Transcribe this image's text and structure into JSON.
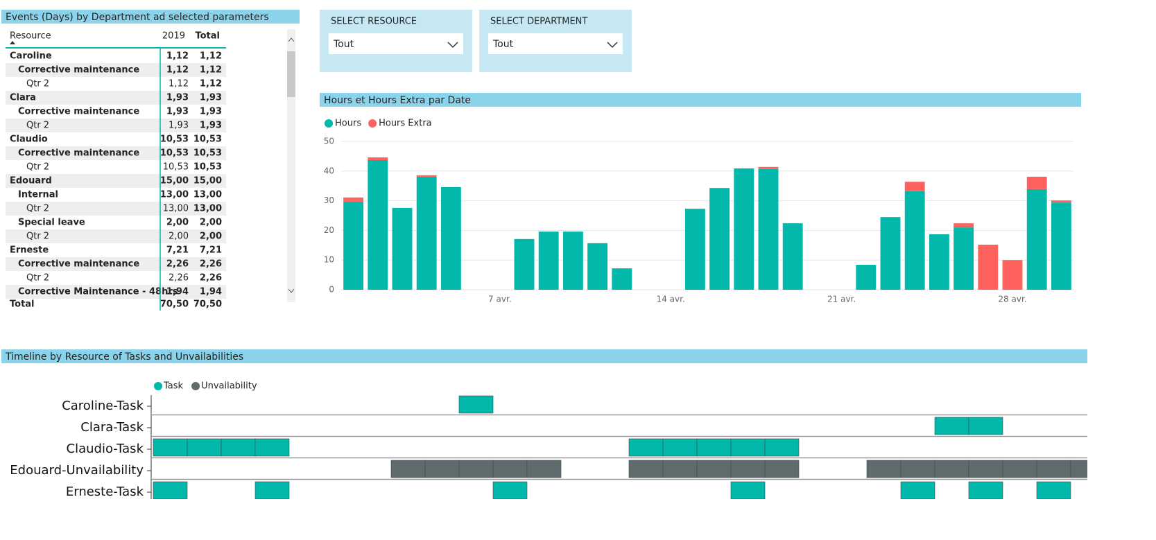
{
  "table_panel": {
    "title": "Events (Days) by Department ad selected parameters",
    "columns": [
      "Resource",
      "2019",
      "Total"
    ],
    "rows": [
      {
        "label": "Caroline",
        "cells": [
          "1,12",
          "1,12"
        ],
        "children": [
          {
            "label": "Corrective maintenance",
            "cells": [
              "1,12",
              "1,12"
            ],
            "children": [
              {
                "label": "Qtr 2",
                "cells": [
                  "1,12",
                  "1,12"
                ]
              }
            ]
          }
        ]
      },
      {
        "label": "Clara",
        "cells": [
          "1,93",
          "1,93"
        ],
        "children": [
          {
            "label": "Corrective maintenance",
            "cells": [
              "1,93",
              "1,93"
            ],
            "children": [
              {
                "label": "Qtr 2",
                "cells": [
                  "1,93",
                  "1,93"
                ]
              }
            ]
          }
        ]
      },
      {
        "label": "Claudio",
        "cells": [
          "10,53",
          "10,53"
        ],
        "children": [
          {
            "label": "Corrective maintenance",
            "cells": [
              "10,53",
              "10,53"
            ],
            "children": [
              {
                "label": "Qtr 2",
                "cells": [
                  "10,53",
                  "10,53"
                ]
              }
            ]
          }
        ]
      },
      {
        "label": "Edouard",
        "cells": [
          "15,00",
          "15,00"
        ],
        "children": [
          {
            "label": "Internal",
            "cells": [
              "13,00",
              "13,00"
            ],
            "children": [
              {
                "label": "Qtr 2",
                "cells": [
                  "13,00",
                  "13,00"
                ]
              }
            ]
          },
          {
            "label": "Special leave",
            "cells": [
              "2,00",
              "2,00"
            ],
            "children": [
              {
                "label": "Qtr 2",
                "cells": [
                  "2,00",
                  "2,00"
                ]
              }
            ]
          }
        ]
      },
      {
        "label": "Erneste",
        "cells": [
          "7,21",
          "7,21"
        ],
        "children": [
          {
            "label": "Corrective maintenance",
            "cells": [
              "2,26",
              "2,26"
            ],
            "children": [
              {
                "label": "Qtr 2",
                "cells": [
                  "2,26",
                  "2,26"
                ]
              }
            ]
          },
          {
            "label": "Corrective Maintenance - 48hrs",
            "cells": [
              "1,94",
              "1,94"
            ]
          }
        ]
      }
    ],
    "total": {
      "label": "Total",
      "cells": [
        "70,50",
        "70,50"
      ]
    }
  },
  "slicers": [
    {
      "label": "SELECT RESOURCE",
      "value": "Tout"
    },
    {
      "label": "SELECT DEPARTMENT",
      "value": "Tout"
    }
  ],
  "chart_data": {
    "type": "bar",
    "stacked": true,
    "title": "Hours et Hours Extra par Date",
    "x": [
      1,
      2,
      3,
      4,
      5,
      8,
      9,
      10,
      11,
      12,
      15,
      16,
      17,
      18,
      19,
      22,
      23,
      24,
      25,
      26,
      27,
      28,
      29,
      30
    ],
    "series": [
      {
        "name": "Hours",
        "color": "#01b8aa",
        "values": [
          29.7,
          43.7,
          27.6,
          38.1,
          34.6,
          17.1,
          19.6,
          19.6,
          15.7,
          7.2,
          27.3,
          34.3,
          40.9,
          40.7,
          22.4,
          8.4,
          24.5,
          33.2,
          18.7,
          21.0,
          0,
          0,
          33.9,
          29.4
        ]
      },
      {
        "name": "Hours Extra",
        "color": "#fd625e",
        "values": [
          1.4,
          0.9,
          0,
          0.5,
          0,
          0,
          0,
          0,
          0,
          0,
          0,
          0,
          0,
          0.7,
          0,
          0,
          0,
          3.2,
          0,
          1.4,
          15.2,
          10.0,
          4.2,
          0.7
        ]
      }
    ],
    "xlim": [
      0.5,
      30.5
    ],
    "xticks": [
      {
        "value": 7,
        "label": "7 avr."
      },
      {
        "value": 14,
        "label": "14 avr."
      },
      {
        "value": 21,
        "label": "21 avr."
      },
      {
        "value": 28,
        "label": "28 avr."
      }
    ],
    "ylim": [
      0,
      50
    ],
    "yticks": [
      0,
      10,
      20,
      30,
      40,
      50
    ],
    "grid": true,
    "legend": "top-left"
  },
  "timeline": {
    "title": "Timeline by Resource of Tasks and Unvailabilities",
    "legend": [
      {
        "name": "Task",
        "color": "#01b8aa"
      },
      {
        "name": "Unvailability",
        "color": "#5f6b6d"
      }
    ],
    "xlim": [
      0,
      27.5
    ],
    "rows": [
      {
        "label": "Caroline-Task",
        "color": "#01b8aa",
        "cells": [
          9
        ]
      },
      {
        "label": "Clara-Task",
        "color": "#01b8aa",
        "cells": [
          23,
          24
        ]
      },
      {
        "label": "Claudio-Task",
        "color": "#01b8aa",
        "cells": [
          0,
          1,
          2,
          3,
          14,
          15,
          16,
          17,
          18
        ]
      },
      {
        "label": "Edouard-Unvailability",
        "color": "#5f6b6d",
        "cells": [
          7,
          8,
          9,
          10,
          11,
          14,
          15,
          16,
          17,
          18,
          21,
          22,
          23,
          24,
          25,
          26,
          27
        ]
      },
      {
        "label": "Erneste-Task",
        "color": "#01b8aa",
        "cells": [
          0,
          3,
          10,
          17,
          22,
          24,
          26
        ]
      }
    ]
  }
}
